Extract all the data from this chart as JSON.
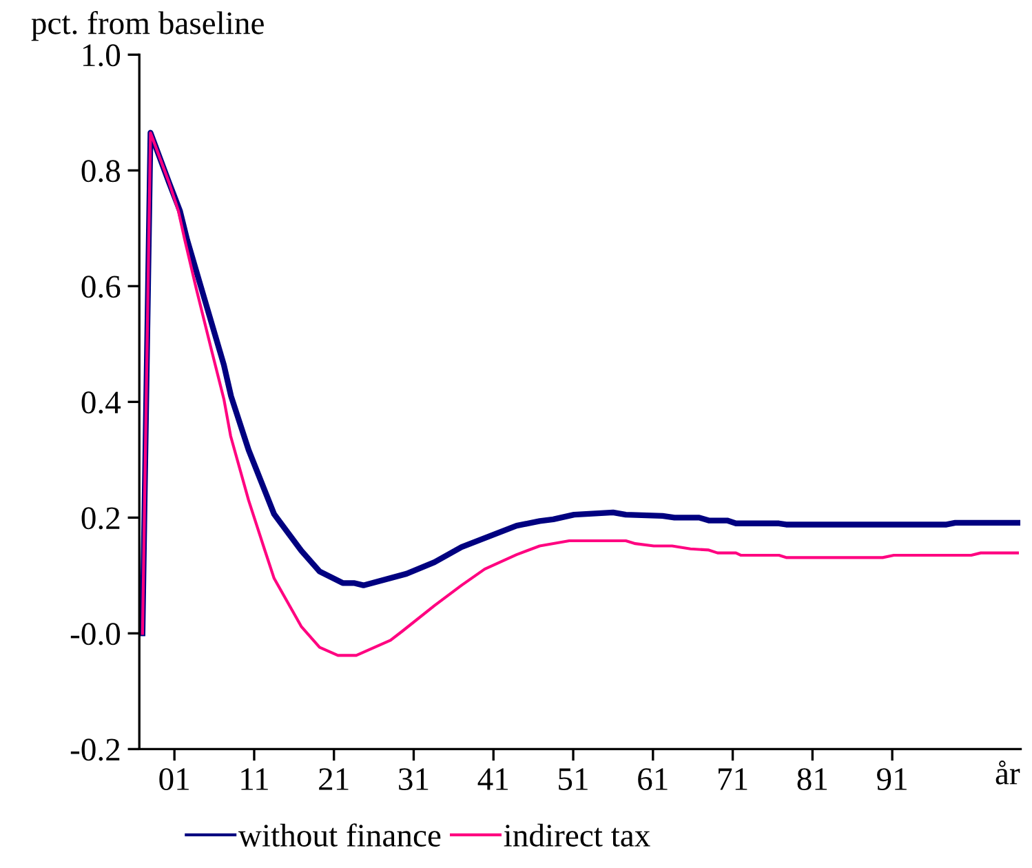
{
  "chart_data": {
    "type": "line",
    "ylabel": "pct. from baseline",
    "xlabel": "år",
    "xlim": [
      -3.4,
      107.1
    ],
    "ylim": [
      -0.2,
      1.0
    ],
    "xticks": [
      {
        "value": 1,
        "label": "01"
      },
      11,
      21,
      31,
      41,
      51,
      61,
      71,
      81,
      91
    ],
    "yticks": [
      -0.2,
      {
        "value": 0,
        "label": "-0.0"
      },
      0.2,
      0.4,
      0.6,
      0.8,
      {
        "value": 1.0,
        "label": "1.0"
      }
    ],
    "grid": false,
    "legend": "bottom",
    "line_style": "solid",
    "marker": "none",
    "series": [
      {
        "name": "without finance",
        "color": "#000080",
        "x": [
          -3,
          -2,
          0.3,
          1.7,
          2.6,
          4.3,
          7.2,
          8.1,
          10.3,
          13.5,
          16.9,
          19.2,
          22.1,
          23.5,
          24.7,
          30.1,
          33.6,
          37,
          40.5,
          43.9,
          46.8,
          48.5,
          51.1,
          56,
          57.6,
          62.2,
          63.7,
          66.8,
          68,
          70.3,
          71.4,
          76.8,
          77.7,
          97.8,
          98.9,
          106.7
        ],
        "values": [
          0.0,
          0.865,
          0.78,
          0.73,
          0.68,
          0.6,
          0.464,
          0.41,
          0.317,
          0.206,
          0.143,
          0.107,
          0.087,
          0.087,
          0.083,
          0.103,
          0.123,
          0.149,
          0.168,
          0.186,
          0.194,
          0.197,
          0.205,
          0.209,
          0.205,
          0.203,
          0.2,
          0.2,
          0.195,
          0.195,
          0.19,
          0.19,
          0.188,
          0.188,
          0.191,
          0.191
        ]
      },
      {
        "name": "indirect tax",
        "color": "#ff0080",
        "x": [
          -3,
          -2,
          0.3,
          1.5,
          2.3,
          3.75,
          5.75,
          7.2,
          8.05,
          10.3,
          12.35,
          13.5,
          16.9,
          19.2,
          21.5,
          23.8,
          28.1,
          29.6,
          33.6,
          37,
          39.9,
          43.9,
          46.8,
          50.5,
          57.6,
          58.8,
          61.1,
          63.4,
          65.7,
          68,
          69.1,
          71.4,
          72,
          76.8,
          77.7,
          89.8,
          91.2,
          100.9,
          102.1,
          106.7
        ],
        "values": [
          0.0,
          0.865,
          0.78,
          0.73,
          0.68,
          0.595,
          0.484,
          0.405,
          0.341,
          0.23,
          0.143,
          0.095,
          0.012,
          -0.024,
          -0.038,
          -0.038,
          -0.012,
          0.004,
          0.048,
          0.083,
          0.111,
          0.136,
          0.151,
          0.16,
          0.16,
          0.155,
          0.151,
          0.151,
          0.146,
          0.144,
          0.139,
          0.139,
          0.135,
          0.135,
          0.131,
          0.131,
          0.135,
          0.135,
          0.139,
          0.139
        ]
      }
    ]
  }
}
